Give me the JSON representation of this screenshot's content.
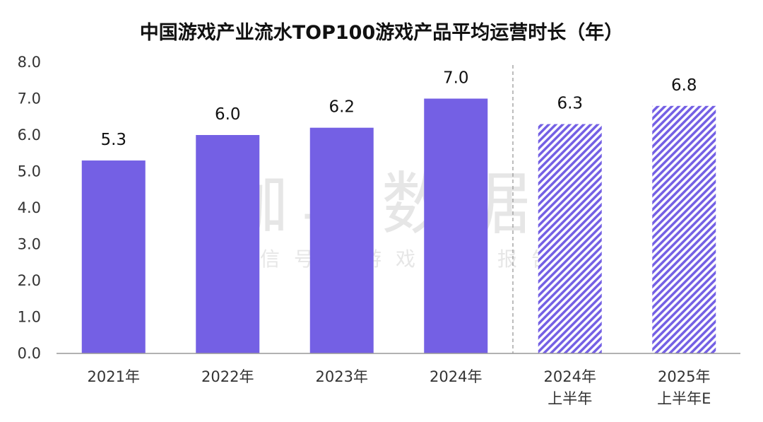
{
  "chart_data": {
    "type": "bar",
    "title": "中国游戏产业流水TOP100游戏产品平均运营时长（年）",
    "categories": [
      [
        "2021年"
      ],
      [
        "2022年"
      ],
      [
        "2023年"
      ],
      [
        "2024年"
      ],
      [
        "2024年",
        "上半年"
      ],
      [
        "2025年",
        "上半年E"
      ]
    ],
    "values": [
      5.3,
      6.0,
      6.2,
      7.0,
      6.3,
      6.8
    ],
    "value_labels": [
      "5.3",
      "6.0",
      "6.2",
      "7.0",
      "6.3",
      "6.8"
    ],
    "bar_style": [
      "solid",
      "solid",
      "solid",
      "solid",
      "hatched",
      "hatched"
    ],
    "yticks": [
      "0.0",
      "1.0",
      "2.0",
      "3.0",
      "4.0",
      "5.0",
      "6.0",
      "7.0",
      "8.0"
    ],
    "ylim": [
      0,
      8
    ],
    "divider_between": [
      3,
      4
    ],
    "grid": false,
    "xlabel": "",
    "ylabel": ""
  },
  "watermark": {
    "main": "伽马数据",
    "sub": "微信号：游戏产业报告"
  },
  "colors": {
    "bar": "#7460e4",
    "hatch_stripe": "#7460e4",
    "axis": "#999999",
    "divider": "#999999"
  }
}
